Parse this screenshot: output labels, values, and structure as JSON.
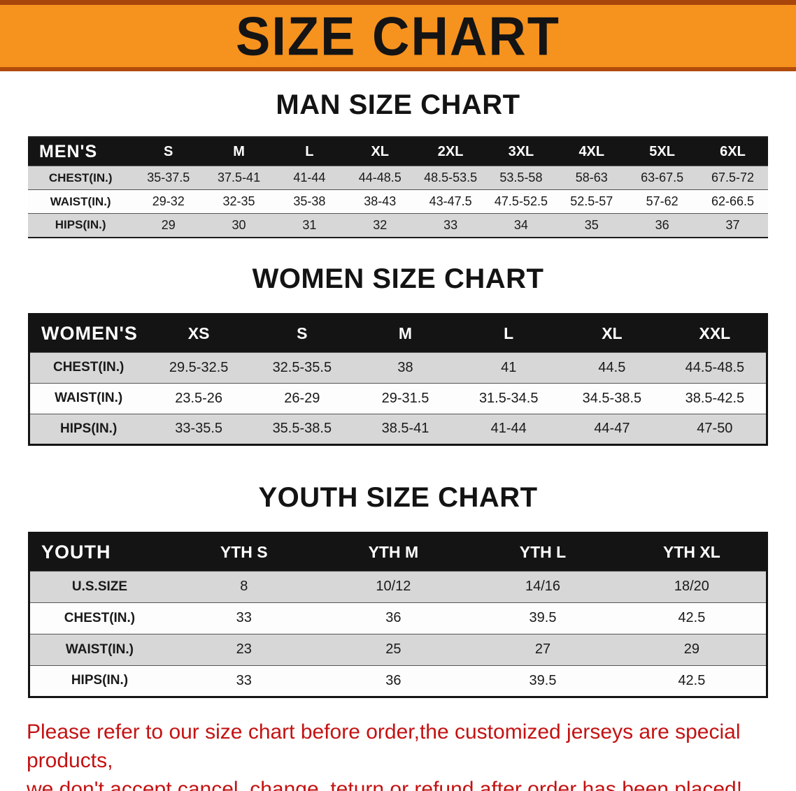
{
  "banner": {
    "title": "SIZE CHART"
  },
  "colors": {
    "banner_orange": "#f6921e",
    "banner_edge": "#a8450b",
    "table_header_black": "#141414",
    "row_gray": "#d7d7d7",
    "row_white": "#fdfdfd",
    "notice_red": "#c41212"
  },
  "sections": [
    {
      "heading": "MAN SIZE CHART",
      "corner_label": "MEN'S",
      "style": "mens",
      "columns": [
        "S",
        "M",
        "L",
        "XL",
        "2XL",
        "3XL",
        "4XL",
        "5XL",
        "6XL"
      ],
      "rows": [
        {
          "label": "CHEST(IN.)",
          "values": [
            "35-37.5",
            "37.5-41",
            "41-44",
            "44-48.5",
            "48.5-53.5",
            "53.5-58",
            "58-63",
            "63-67.5",
            "67.5-72"
          ]
        },
        {
          "label": "WAIST(IN.)",
          "values": [
            "29-32",
            "32-35",
            "35-38",
            "38-43",
            "43-47.5",
            "47.5-52.5",
            "52.5-57",
            "57-62",
            "62-66.5"
          ]
        },
        {
          "label": "HIPS(IN.)",
          "values": [
            "29",
            "30",
            "31",
            "32",
            "33",
            "34",
            "35",
            "36",
            "37"
          ]
        }
      ]
    },
    {
      "heading": "WOMEN SIZE CHART",
      "corner_label": "WOMEN'S",
      "style": "womens",
      "columns": [
        "XS",
        "S",
        "M",
        "L",
        "XL",
        "XXL"
      ],
      "rows": [
        {
          "label": "CHEST(IN.)",
          "values": [
            "29.5-32.5",
            "32.5-35.5",
            "38",
            "41",
            "44.5",
            "44.5-48.5"
          ]
        },
        {
          "label": "WAIST(IN.)",
          "values": [
            "23.5-26",
            "26-29",
            "29-31.5",
            "31.5-34.5",
            "34.5-38.5",
            "38.5-42.5"
          ]
        },
        {
          "label": "HIPS(IN.)",
          "values": [
            "33-35.5",
            "35.5-38.5",
            "38.5-41",
            "41-44",
            "44-47",
            "47-50"
          ]
        }
      ]
    },
    {
      "heading": "YOUTH SIZE CHART",
      "corner_label": "YOUTH",
      "style": "youth",
      "columns": [
        "YTH S",
        "YTH M",
        "YTH L",
        "YTH XL"
      ],
      "rows": [
        {
          "label": "U.S.SIZE",
          "values": [
            "8",
            "10/12",
            "14/16",
            "18/20"
          ]
        },
        {
          "label": "CHEST(IN.)",
          "values": [
            "33",
            "36",
            "39.5",
            "42.5"
          ]
        },
        {
          "label": "WAIST(IN.)",
          "values": [
            "23",
            "25",
            "27",
            "29"
          ]
        },
        {
          "label": "HIPS(IN.)",
          "values": [
            "33",
            "36",
            "39.5",
            "42.5"
          ]
        }
      ]
    }
  ],
  "footer": {
    "line1": "Please refer to our size chart before order,the customized jerseys are special products,",
    "line2": "we don't accept cancel, change, teturn or refund after order has been placed!"
  }
}
